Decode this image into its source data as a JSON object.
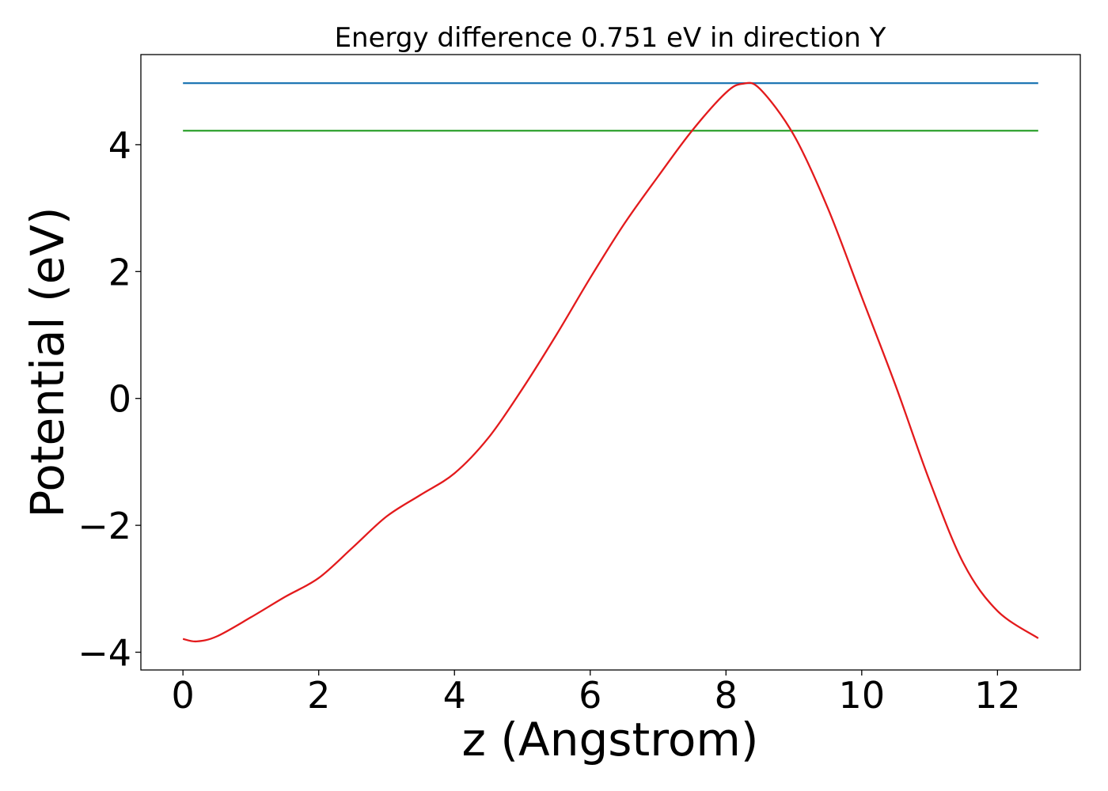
{
  "chart_data": {
    "type": "line",
    "title": "Energy difference 0.751 eV in direction Y",
    "xlabel": "z (Angstrom)",
    "ylabel": "Potential (eV)",
    "xlim": [
      -0.62,
      13.22
    ],
    "ylim": [
      -4.28,
      5.42
    ],
    "xticks": [
      0,
      2,
      4,
      6,
      8,
      10,
      12
    ],
    "xtick_labels": [
      "0",
      "2",
      "4",
      "6",
      "8",
      "10",
      "12"
    ],
    "yticks": [
      -4,
      -2,
      0,
      2,
      4
    ],
    "ytick_labels": [
      "−4",
      "−2",
      "0",
      "2",
      "4"
    ],
    "grid": false,
    "legend": "none",
    "series": [
      {
        "color": "#1f77b4",
        "x": [
          0,
          12.6
        ],
        "y": [
          4.97,
          4.97
        ]
      },
      {
        "color": "#2ca02c",
        "x": [
          0,
          12.6
        ],
        "y": [
          4.22,
          4.22
        ]
      },
      {
        "color": "#e31a1c",
        "x": [
          0,
          0.2,
          0.5,
          1.0,
          1.5,
          2.0,
          2.5,
          3.0,
          3.5,
          4.0,
          4.5,
          5.0,
          5.5,
          6.0,
          6.5,
          7.0,
          7.5,
          8.0,
          8.25,
          8.5,
          9.0,
          9.5,
          10.0,
          10.5,
          11.0,
          11.5,
          12.0,
          12.6
        ],
        "y": [
          -3.79,
          -3.83,
          -3.75,
          -3.45,
          -3.13,
          -2.83,
          -2.35,
          -1.86,
          -1.52,
          -1.18,
          -0.62,
          0.15,
          1.0,
          1.9,
          2.75,
          3.5,
          4.22,
          4.82,
          4.96,
          4.88,
          4.15,
          3.0,
          1.6,
          0.2,
          -1.3,
          -2.6,
          -3.35,
          -3.78
        ]
      }
    ]
  }
}
